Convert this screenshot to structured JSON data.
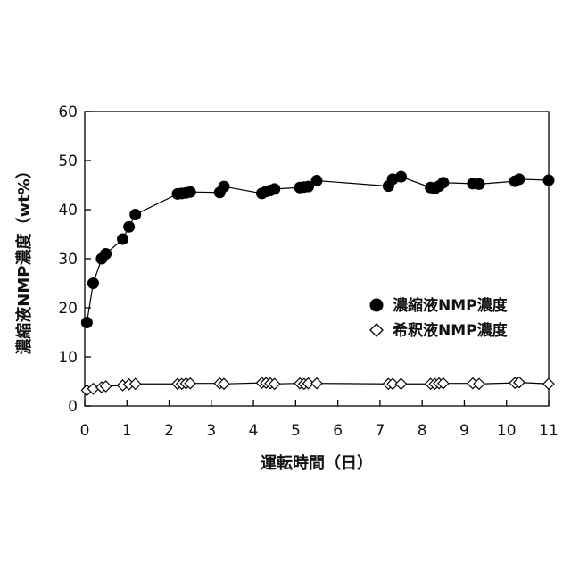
{
  "chart_data": {
    "type": "line",
    "title": "",
    "xlabel": "運転時間（日）",
    "ylabel": "濃縮液NMP濃度（wt%）",
    "xlim": [
      0,
      11
    ],
    "ylim": [
      0,
      60
    ],
    "x_ticks": [
      0,
      1,
      2,
      3,
      4,
      5,
      6,
      7,
      8,
      9,
      10,
      11
    ],
    "y_ticks": [
      0,
      10,
      20,
      30,
      40,
      50,
      60
    ],
    "grid": false,
    "legend_position": "right-middle",
    "series": [
      {
        "name": "濃縮液NMP濃度",
        "marker": "filled-circle",
        "color": "#000000",
        "x": [
          0.05,
          0.2,
          0.4,
          0.5,
          0.9,
          1.05,
          1.2,
          2.2,
          2.3,
          2.4,
          2.5,
          3.2,
          3.3,
          4.2,
          4.3,
          4.4,
          4.5,
          5.1,
          5.2,
          5.3,
          5.5,
          7.2,
          7.3,
          7.5,
          8.2,
          8.3,
          8.4,
          8.5,
          9.2,
          9.35,
          10.2,
          10.3,
          11.0
        ],
        "y": [
          17,
          25,
          30,
          31,
          34,
          36.5,
          39,
          43.2,
          43.3,
          43.4,
          43.6,
          43.5,
          44.7,
          43.3,
          43.7,
          43.9,
          44.2,
          44.5,
          44.6,
          44.7,
          45.9,
          44.8,
          46.2,
          46.7,
          44.5,
          44.3,
          44.8,
          45.5,
          45.3,
          45.2,
          45.8,
          46.2,
          46.0
        ]
      },
      {
        "name": "希釈液NMP濃度",
        "marker": "open-diamond",
        "color": "#000000",
        "x": [
          0.05,
          0.2,
          0.4,
          0.5,
          0.9,
          1.05,
          1.2,
          2.2,
          2.3,
          2.4,
          2.5,
          3.2,
          3.3,
          4.2,
          4.3,
          4.4,
          4.5,
          5.1,
          5.2,
          5.3,
          5.5,
          7.2,
          7.3,
          7.5,
          8.2,
          8.3,
          8.4,
          8.5,
          9.2,
          9.35,
          10.2,
          10.3,
          11.0
        ],
        "y": [
          3.2,
          3.5,
          3.8,
          4.0,
          4.2,
          4.4,
          4.5,
          4.5,
          4.5,
          4.6,
          4.6,
          4.6,
          4.5,
          4.7,
          4.7,
          4.6,
          4.5,
          4.6,
          4.5,
          4.6,
          4.6,
          4.5,
          4.5,
          4.5,
          4.5,
          4.5,
          4.6,
          4.6,
          4.6,
          4.5,
          4.7,
          4.8,
          4.5
        ]
      }
    ]
  }
}
